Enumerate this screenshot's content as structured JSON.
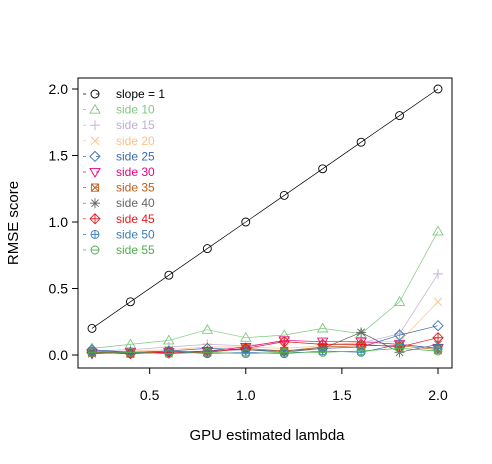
{
  "chart_data": {
    "type": "line",
    "title": "",
    "xlabel": "GPU estimated lambda",
    "ylabel": "RMSE score",
    "xlim": [
      0.2,
      2.0
    ],
    "ylim": [
      0.0,
      2.0
    ],
    "xticks": [
      0.5,
      1.0,
      1.5,
      2.0
    ],
    "xtick_labels": [
      "0.5",
      "1.0",
      "1.5",
      "2.0"
    ],
    "yticks": [
      0.0,
      0.5,
      1.0,
      1.5,
      2.0
    ],
    "ytick_labels": [
      "0.0",
      "0.5",
      "1.0",
      "1.5",
      "2.0"
    ],
    "grid": false,
    "legend_position": "top-left",
    "x": [
      0.2,
      0.4,
      0.6,
      0.8,
      1.0,
      1.2,
      1.4,
      1.6,
      1.8,
      2.0
    ],
    "series": [
      {
        "name": "slope = 1",
        "color": "#000000",
        "marker": "circle",
        "values": [
          0.2,
          0.4,
          0.6,
          0.8,
          1.0,
          1.2,
          1.4,
          1.6,
          1.8,
          2.0
        ]
      },
      {
        "name": "side 10",
        "color": "#7fc97f",
        "marker": "triangle-up",
        "values": [
          0.05,
          0.08,
          0.11,
          0.19,
          0.13,
          0.15,
          0.2,
          0.16,
          0.4,
          0.93
        ]
      },
      {
        "name": "side 15",
        "color": "#beaed4",
        "marker": "plus",
        "values": [
          0.03,
          0.04,
          0.06,
          0.08,
          0.07,
          0.1,
          0.08,
          0.09,
          0.16,
          0.61
        ]
      },
      {
        "name": "side 20",
        "color": "#fdc086",
        "marker": "cross",
        "values": [
          0.02,
          0.03,
          0.04,
          0.06,
          0.06,
          0.05,
          0.07,
          0.1,
          0.1,
          0.4
        ]
      },
      {
        "name": "side 25",
        "color": "#386cb0",
        "marker": "diamond",
        "values": [
          0.04,
          0.02,
          0.03,
          0.05,
          0.04,
          0.03,
          0.05,
          0.06,
          0.15,
          0.22
        ]
      },
      {
        "name": "side 30",
        "color": "#f0027f",
        "marker": "triangle-down",
        "values": [
          0.01,
          0.02,
          0.02,
          0.03,
          0.06,
          0.11,
          0.1,
          0.1,
          0.08,
          0.05
        ]
      },
      {
        "name": "side 35",
        "color": "#bf5b17",
        "marker": "square-x",
        "values": [
          0.02,
          0.01,
          0.03,
          0.02,
          0.05,
          0.03,
          0.06,
          0.07,
          0.07,
          0.04
        ]
      },
      {
        "name": "side 40",
        "color": "#666666",
        "marker": "asterisk",
        "values": [
          0.01,
          0.02,
          0.01,
          0.03,
          0.04,
          0.02,
          0.05,
          0.17,
          0.02,
          0.08
        ]
      },
      {
        "name": "side 45",
        "color": "#e41a1c",
        "marker": "diamond-plus",
        "values": [
          0.02,
          0.01,
          0.02,
          0.02,
          0.05,
          0.1,
          0.08,
          0.08,
          0.06,
          0.13
        ]
      },
      {
        "name": "side 50",
        "color": "#377eb8",
        "marker": "circle-plus",
        "values": [
          0.03,
          0.02,
          0.03,
          0.01,
          0.02,
          0.01,
          0.03,
          0.02,
          0.08,
          0.05
        ]
      },
      {
        "name": "side 55",
        "color": "#4daf4a",
        "marker": "circle-minus",
        "values": [
          0.02,
          0.02,
          0.01,
          0.02,
          0.01,
          0.02,
          0.02,
          0.03,
          0.05,
          0.03
        ]
      }
    ]
  }
}
